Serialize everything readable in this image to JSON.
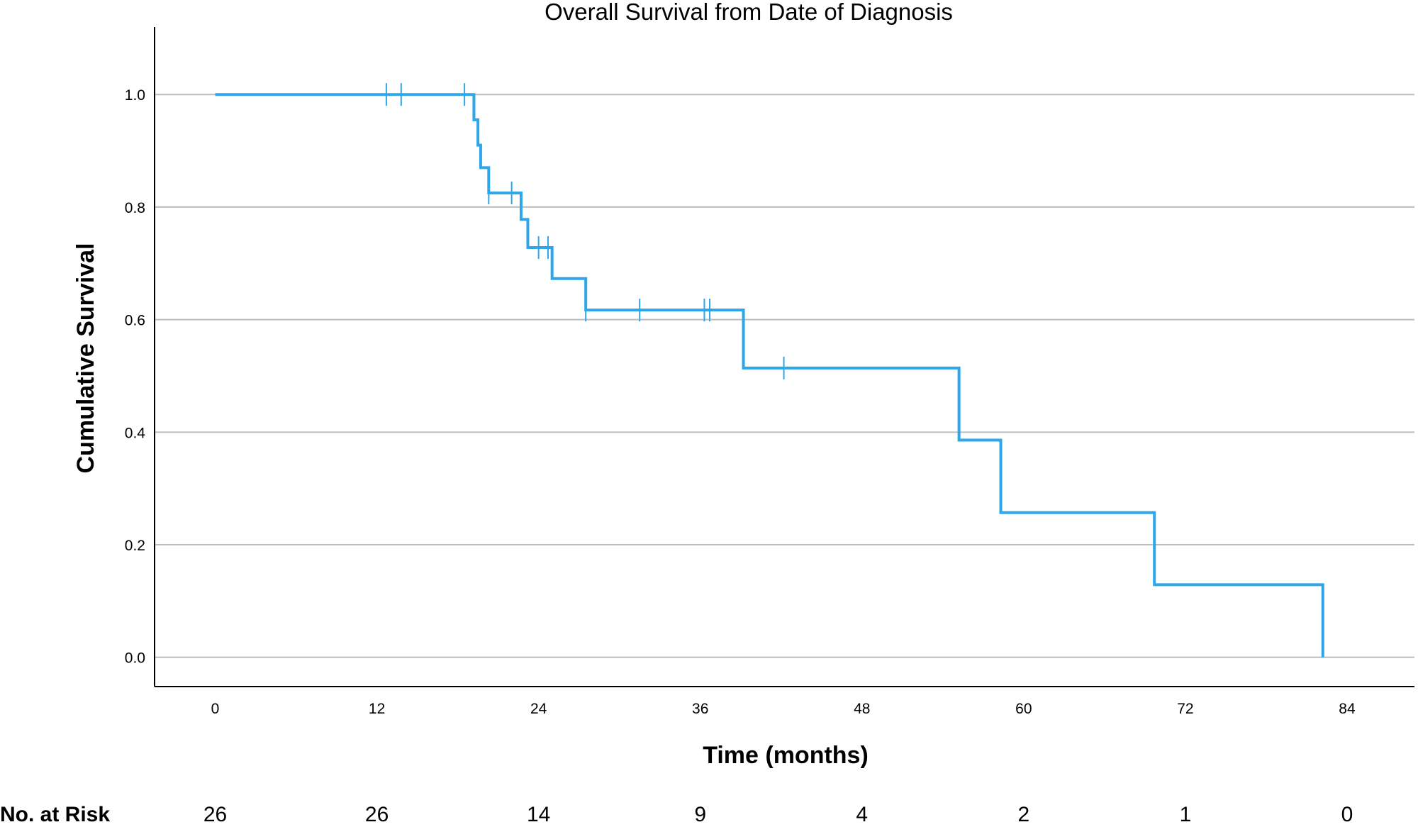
{
  "chart_data": {
    "type": "line",
    "title": "Overall Survival from Date of Diagnosis",
    "xlabel": "Time (months)",
    "ylabel": "Cumulative Survival",
    "xlim": [
      -4.5,
      89
    ],
    "ylim": [
      -0.052,
      1.12
    ],
    "x_ticks": [
      0,
      12,
      24,
      36,
      48,
      60,
      72,
      84
    ],
    "x_tick_labels": [
      "0",
      "12",
      "24",
      "36",
      "48",
      "60",
      "72",
      "84"
    ],
    "y_ticks": [
      0.0,
      0.2,
      0.4,
      0.6,
      0.8,
      1.0
    ],
    "y_tick_labels": [
      "0.0",
      "0.2",
      "0.4",
      "0.6",
      "0.8",
      "1.0"
    ],
    "grid": "horizontal",
    "line_color": "#2ea6ea",
    "grid_color": "#bdbdbd",
    "series": [
      {
        "steps": [
          {
            "x": 0,
            "y": 1.0
          },
          {
            "x": 19.2,
            "y": 0.955
          },
          {
            "x": 19.5,
            "y": 0.91
          },
          {
            "x": 19.7,
            "y": 0.87
          },
          {
            "x": 20.3,
            "y": 0.825
          },
          {
            "x": 22.7,
            "y": 0.778
          },
          {
            "x": 23.2,
            "y": 0.728
          },
          {
            "x": 25.0,
            "y": 0.673
          },
          {
            "x": 27.5,
            "y": 0.617
          },
          {
            "x": 39.2,
            "y": 0.514
          },
          {
            "x": 55.2,
            "y": 0.386
          },
          {
            "x": 58.3,
            "y": 0.257
          },
          {
            "x": 69.7,
            "y": 0.129
          },
          {
            "x": 82.2,
            "y": 0.0
          }
        ],
        "end_x": 82.2,
        "censored": [
          {
            "x": 12.7,
            "y": 1.0
          },
          {
            "x": 13.8,
            "y": 1.0
          },
          {
            "x": 18.5,
            "y": 1.0
          },
          {
            "x": 20.3,
            "y": 0.825
          },
          {
            "x": 22.0,
            "y": 0.825
          },
          {
            "x": 24.0,
            "y": 0.728
          },
          {
            "x": 24.7,
            "y": 0.728
          },
          {
            "x": 27.5,
            "y": 0.617
          },
          {
            "x": 31.5,
            "y": 0.617
          },
          {
            "x": 36.3,
            "y": 0.617
          },
          {
            "x": 36.7,
            "y": 0.617
          },
          {
            "x": 42.2,
            "y": 0.514
          }
        ]
      }
    ],
    "risk_table": {
      "label": "No. at Risk",
      "times": [
        0,
        12,
        24,
        36,
        48,
        60,
        72,
        84
      ],
      "values": [
        "26",
        "26",
        "14",
        "9",
        "4",
        "2",
        "1",
        "0"
      ]
    }
  }
}
